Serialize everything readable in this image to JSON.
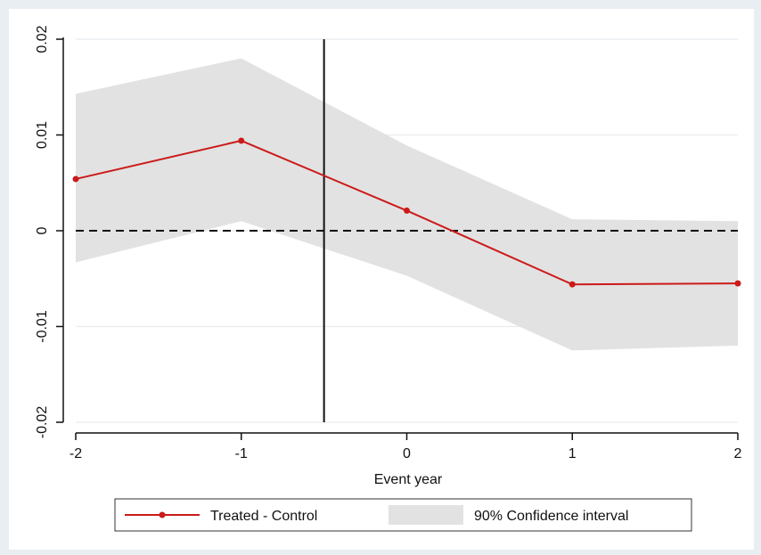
{
  "chart_data": {
    "type": "line",
    "title": "",
    "xlabel": "Event year",
    "ylabel": "",
    "x": [
      -2,
      -1,
      0,
      1,
      2
    ],
    "xlim": [
      -2,
      2
    ],
    "ylim": [
      -0.02,
      0.02
    ],
    "x_ticks": [
      "-2",
      "-1",
      "0",
      "1",
      "2"
    ],
    "x_tick_values": [
      -2,
      -1,
      0,
      1,
      2
    ],
    "y_ticks": [
      "-0.02",
      "-0.01",
      "0",
      "0.01",
      "0.02"
    ],
    "y_tick_values": [
      -0.02,
      -0.01,
      0,
      0.01,
      0.02
    ],
    "grid": true,
    "legend_position": "bottom",
    "series": [
      {
        "name": "Treated - Control",
        "values": [
          0.0054,
          0.0094,
          0.0021,
          -0.0056,
          -0.0055
        ],
        "color": "#cc1a1a"
      }
    ],
    "band": {
      "name": "90% Confidence interval",
      "lower": [
        -0.0033,
        0.001,
        -0.0047,
        -0.0125,
        -0.012
      ],
      "upper": [
        0.0143,
        0.018,
        0.0089,
        0.0012,
        0.001
      ],
      "color": "#e2e2e2"
    },
    "reference_lines": {
      "horizontal_y": 0,
      "vertical_x": -0.5
    }
  }
}
